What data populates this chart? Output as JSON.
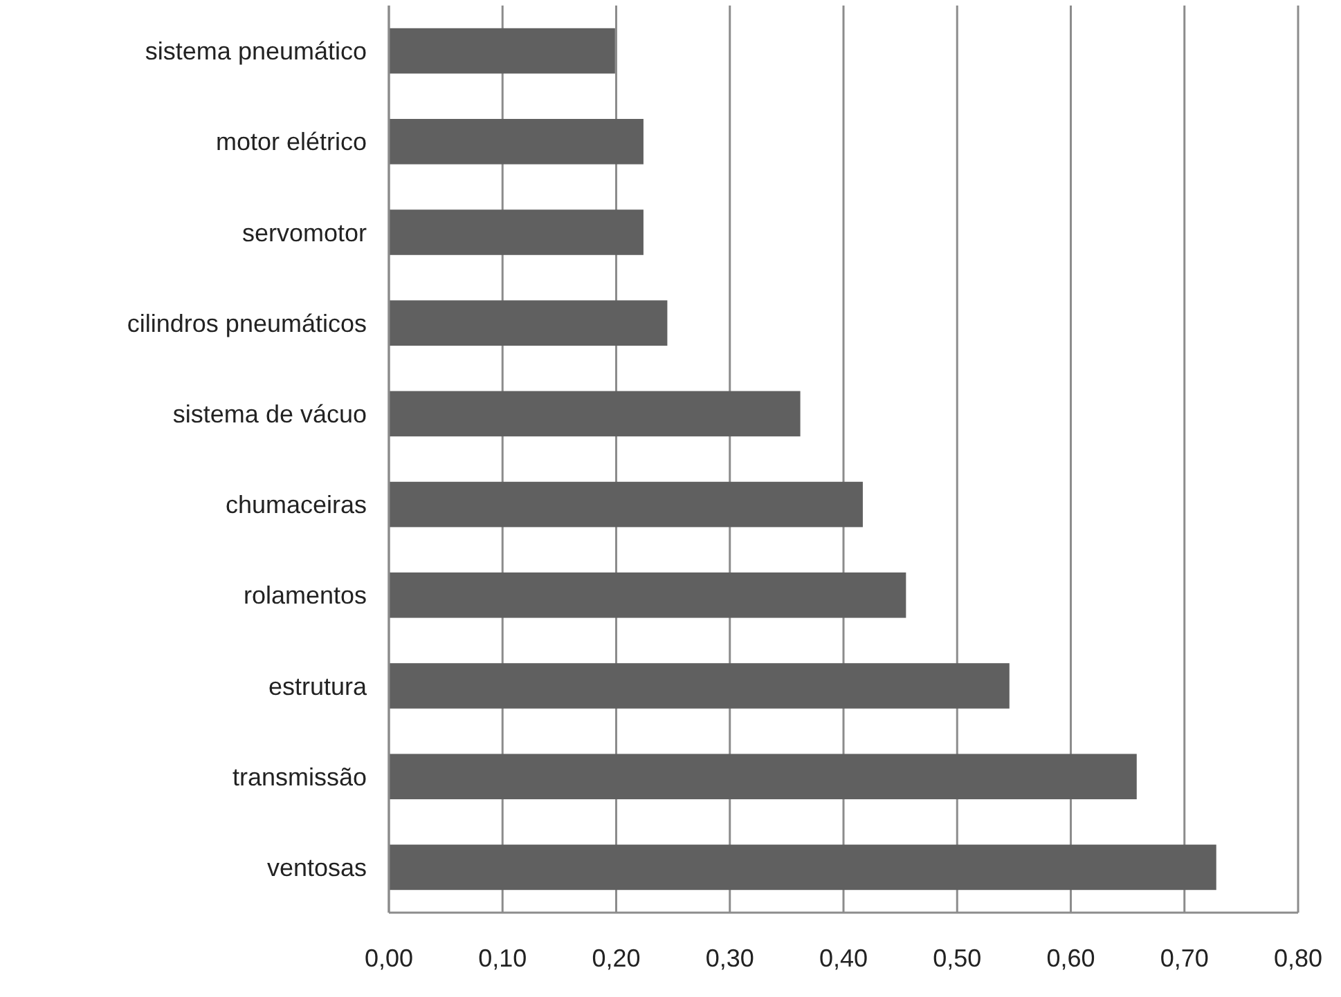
{
  "chart_data": {
    "type": "bar",
    "orientation": "horizontal",
    "categories": [
      "sistema pneumático",
      "motor elétrico",
      "servomotor",
      "cilindros pneumáticos",
      "sistema de vácuo",
      "chumaceiras",
      "rolamentos",
      "estrutura",
      "transmissão",
      "ventosas"
    ],
    "values": [
      0.199,
      0.224,
      0.224,
      0.245,
      0.362,
      0.417,
      0.455,
      0.546,
      0.658,
      0.728
    ],
    "color": "#606060",
    "xlim": [
      0,
      0.8
    ],
    "xticks": [
      {
        "value": 0,
        "label": "0,00"
      },
      {
        "value": 0.1,
        "label": "0,10"
      },
      {
        "value": 0.2,
        "label": "0,20"
      },
      {
        "value": 0.3,
        "label": "0,30"
      },
      {
        "value": 0.4,
        "label": "0,40"
      },
      {
        "value": 0.5,
        "label": "0,50"
      },
      {
        "value": 0.6,
        "label": "0,60"
      },
      {
        "value": 0.7,
        "label": "0,70"
      },
      {
        "value": 0.8,
        "label": "0,80"
      }
    ],
    "grid": "x"
  }
}
